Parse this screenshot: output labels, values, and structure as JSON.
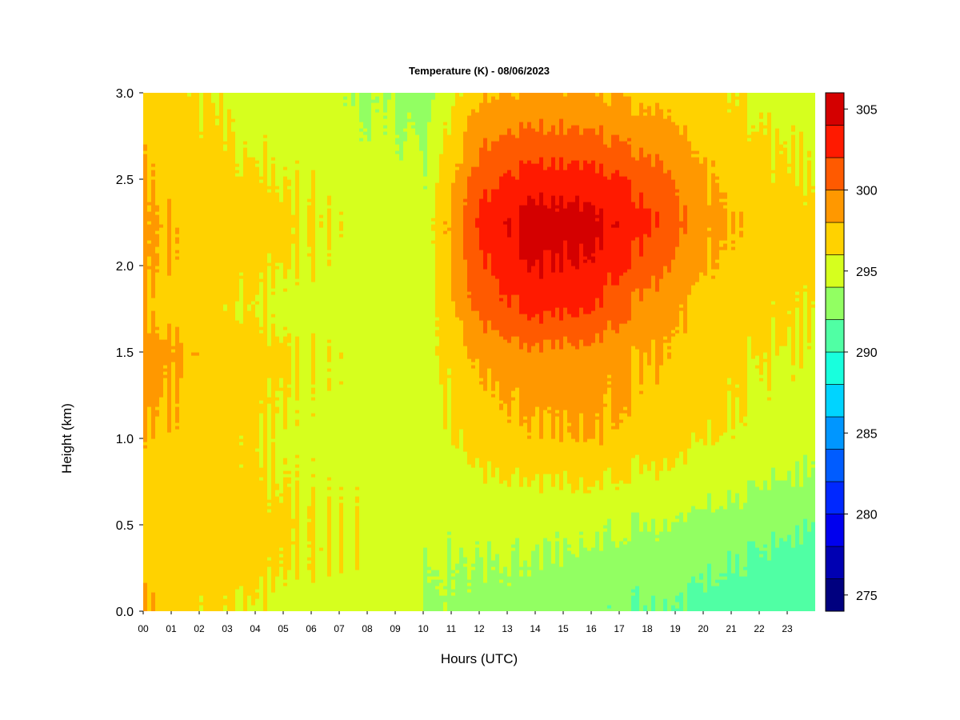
{
  "chart_data": {
    "type": "heatmap",
    "title": "Temperature (K) - 08/06/2023",
    "xlabel": "Hours (UTC)",
    "ylabel": "Height (km)",
    "xlim": [
      0,
      24
    ],
    "ylim": [
      0,
      3.0
    ],
    "x_tick_labels": [
      "00",
      "01",
      "02",
      "03",
      "04",
      "05",
      "06",
      "07",
      "08",
      "09",
      "10",
      "11",
      "12",
      "13",
      "14",
      "15",
      "16",
      "17",
      "18",
      "19",
      "20",
      "21",
      "22",
      "23"
    ],
    "y_tick_labels": [
      "0.0",
      "0.5",
      "1.0",
      "1.5",
      "2.0",
      "2.5",
      "3.0"
    ],
    "y_ticks": [
      0.0,
      0.5,
      1.0,
      1.5,
      2.0,
      2.5,
      3.0
    ],
    "grid": false,
    "colorbar": {
      "label": "",
      "range": [
        274,
        306
      ],
      "levels": [
        274,
        276,
        278,
        280,
        282,
        284,
        286,
        288,
        290,
        292,
        294,
        296,
        298,
        300,
        302,
        304,
        306
      ],
      "colors": [
        "#00007f",
        "#0000b2",
        "#0000ee",
        "#0028ff",
        "#005cff",
        "#0096ff",
        "#00d4ff",
        "#18ffdd",
        "#50ffa4",
        "#92ff62",
        "#d6ff1e",
        "#ffd200",
        "#ff9800",
        "#ff5a00",
        "#ff1a00",
        "#d40000",
        "#860000"
      ],
      "tick_values": [
        275,
        280,
        285,
        290,
        295,
        300,
        305
      ],
      "tick_labels": [
        "275",
        "280",
        "285",
        "290",
        "295",
        "300",
        "305"
      ]
    },
    "field_hours": [
      0,
      2,
      4,
      6,
      8,
      10,
      12,
      14,
      16,
      18,
      20,
      22,
      24
    ],
    "field_heights_km": [
      0.0,
      0.25,
      0.5,
      0.75,
      1.0,
      1.25,
      1.5,
      1.75,
      2.0,
      2.25,
      2.5,
      2.75,
      3.0
    ],
    "temperature_K": [
      [
        298.5,
        296.2,
        295.9,
        294.8,
        294.5,
        293.8,
        293.4,
        293.0,
        292.6,
        292.0,
        291.4,
        290.8,
        290.2
      ],
      [
        297.5,
        296.8,
        296.6,
        295.8,
        295.6,
        294.0,
        293.8,
        293.6,
        293.2,
        292.7,
        292.2,
        291.6,
        291.0
      ],
      [
        297.0,
        297.3,
        296.8,
        296.0,
        295.7,
        294.5,
        294.5,
        294.6,
        294.4,
        294.0,
        293.4,
        292.8,
        292.0
      ],
      [
        297.5,
        297.0,
        296.4,
        295.6,
        295.4,
        294.8,
        295.5,
        295.8,
        296.0,
        295.5,
        294.8,
        294.2,
        293.6
      ],
      [
        298.0,
        297.0,
        296.2,
        295.4,
        295.2,
        294.9,
        296.8,
        297.6,
        297.8,
        297.0,
        296.0,
        295.3,
        294.7
      ],
      [
        298.6,
        297.2,
        296.6,
        295.6,
        295.3,
        294.9,
        297.5,
        298.4,
        298.6,
        297.5,
        296.6,
        295.8,
        295.2
      ],
      [
        299.0,
        297.5,
        296.8,
        295.8,
        295.4,
        295.0,
        298.5,
        299.5,
        299.2,
        298.0,
        297.0,
        296.2,
        295.7
      ],
      [
        298.0,
        296.5,
        296.0,
        295.2,
        294.8,
        294.4,
        300.5,
        302.5,
        302.0,
        299.0,
        297.4,
        296.6,
        296.0
      ],
      [
        298.5,
        296.8,
        296.5,
        295.8,
        295.0,
        294.5,
        301.5,
        304.0,
        303.5,
        301.0,
        298.0,
        297.0,
        296.4
      ],
      [
        298.6,
        297.0,
        296.8,
        296.1,
        295.2,
        294.6,
        302.6,
        305.0,
        304.6,
        302.5,
        298.6,
        297.2,
        296.5
      ],
      [
        298.2,
        296.6,
        296.4,
        295.7,
        294.8,
        294.0,
        301.0,
        303.0,
        302.8,
        301.2,
        298.2,
        296.6,
        296.0
      ],
      [
        297.8,
        296.4,
        295.7,
        295.2,
        294.4,
        293.6,
        299.5,
        300.4,
        300.2,
        299.0,
        297.5,
        296.2,
        295.6
      ],
      [
        297.4,
        296.0,
        295.1,
        294.7,
        294.0,
        293.2,
        297.6,
        298.2,
        298.0,
        297.4,
        296.6,
        295.6,
        295.0
      ]
    ]
  }
}
